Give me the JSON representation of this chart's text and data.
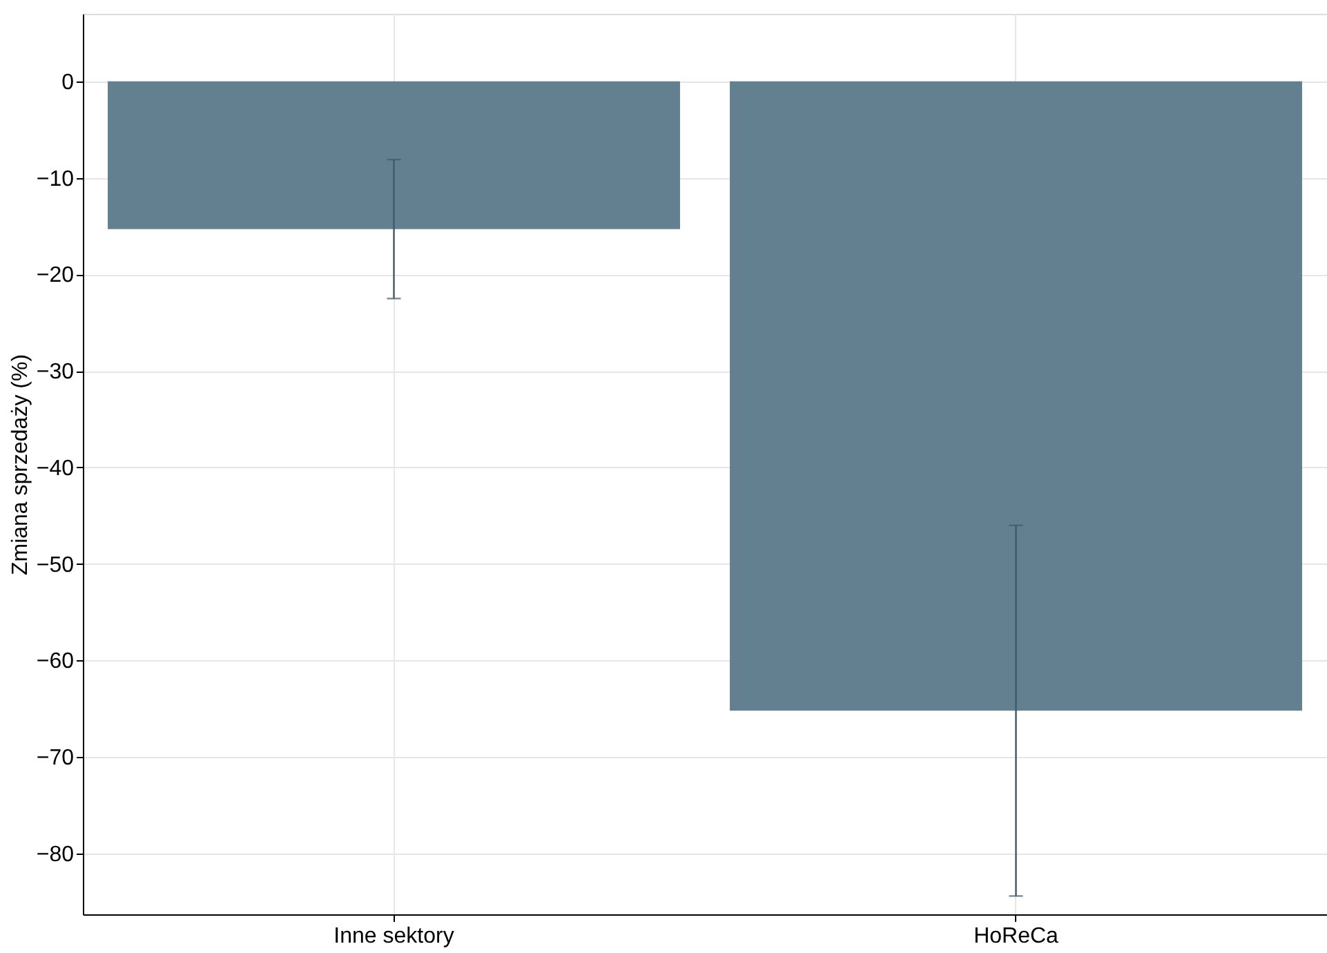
{
  "chart_data": {
    "type": "bar",
    "ylabel": "Zmiana sprzedaży (%)",
    "categories": [
      "Inne sektory",
      "HoReCa"
    ],
    "values": [
      -15.3,
      -65.2
    ],
    "errors": [
      7.2,
      19.2
    ],
    "color": "#62808f",
    "ylim": [
      -86.3,
      7
    ],
    "yticks": [
      0,
      -10,
      -20,
      -30,
      -40,
      -50,
      -60,
      -70,
      -80
    ],
    "grid": true
  }
}
